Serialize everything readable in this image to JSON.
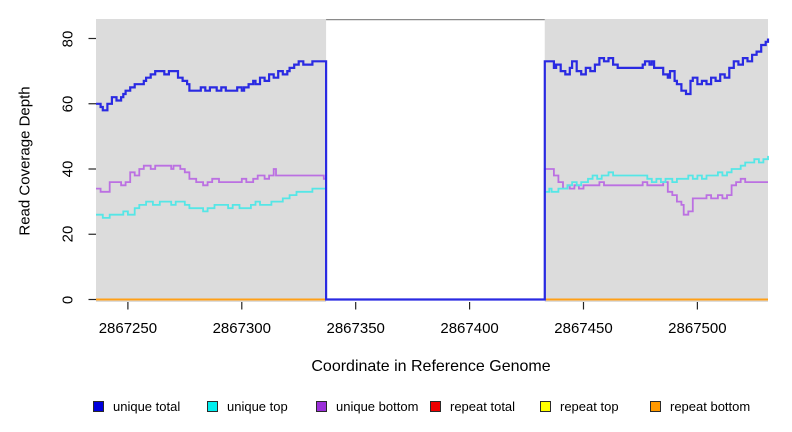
{
  "figure": {
    "page_bg_color": "#ffffff",
    "plot_bg_color": "#dcdcdc",
    "tick_color": "#262626"
  },
  "chart_data": {
    "type": "line",
    "step": true,
    "title": "",
    "xlabel": "Coordinate in Reference Genome",
    "ylabel": "Read Coverage Depth",
    "xlim": [
      2867236,
      2867531
    ],
    "ylim": [
      0,
      80
    ],
    "x_ticks": [
      2867250,
      2867300,
      2867350,
      2867400,
      2867450,
      2867500
    ],
    "y_ticks": [
      0,
      20,
      40,
      60,
      80
    ],
    "grid": false,
    "legend_position": "bottom",
    "masked_region": {
      "x_start": 2867337,
      "x_end": 2867433,
      "fill": "#ffffff",
      "border_color": "#8a8a8a"
    },
    "series": [
      {
        "name": "unique total",
        "line_color": "#2a2ae2",
        "legend_color": "#0000dd",
        "line_width": 2.2,
        "points": [
          [
            2867236,
            60
          ],
          [
            2867238,
            59
          ],
          [
            2867239,
            58
          ],
          [
            2867241,
            60
          ],
          [
            2867243,
            62
          ],
          [
            2867245,
            61
          ],
          [
            2867247,
            62
          ],
          [
            2867248,
            63
          ],
          [
            2867249,
            64
          ],
          [
            2867251,
            65
          ],
          [
            2867253,
            66
          ],
          [
            2867255,
            66
          ],
          [
            2867257,
            67
          ],
          [
            2867258,
            68
          ],
          [
            2867260,
            69
          ],
          [
            2867262,
            70
          ],
          [
            2867264,
            70
          ],
          [
            2867266,
            69
          ],
          [
            2867268,
            70
          ],
          [
            2867271,
            70
          ],
          [
            2867272,
            68
          ],
          [
            2867274,
            67
          ],
          [
            2867276,
            66
          ],
          [
            2867277,
            64
          ],
          [
            2867280,
            64
          ],
          [
            2867282,
            65
          ],
          [
            2867284,
            64
          ],
          [
            2867286,
            65
          ],
          [
            2867289,
            64
          ],
          [
            2867291,
            65
          ],
          [
            2867293,
            64
          ],
          [
            2867296,
            64
          ],
          [
            2867298,
            65
          ],
          [
            2867300,
            64
          ],
          [
            2867301,
            65
          ],
          [
            2867303,
            66
          ],
          [
            2867305,
            67
          ],
          [
            2867306,
            66
          ],
          [
            2867308,
            68
          ],
          [
            2867310,
            67
          ],
          [
            2867312,
            69
          ],
          [
            2867314,
            68
          ],
          [
            2867316,
            70
          ],
          [
            2867318,
            69
          ],
          [
            2867320,
            70
          ],
          [
            2867321,
            71
          ],
          [
            2867323,
            72
          ],
          [
            2867325,
            73
          ],
          [
            2867327,
            72
          ],
          [
            2867329,
            72
          ],
          [
            2867331,
            73
          ],
          [
            2867334,
            73
          ],
          [
            2867337,
            0
          ],
          [
            2867433,
            73
          ],
          [
            2867436,
            73
          ],
          [
            2867437,
            71
          ],
          [
            2867438,
            72
          ],
          [
            2867440,
            70
          ],
          [
            2867442,
            69
          ],
          [
            2867444,
            71
          ],
          [
            2867445,
            73
          ],
          [
            2867447,
            70
          ],
          [
            2867449,
            69
          ],
          [
            2867451,
            71
          ],
          [
            2867453,
            70
          ],
          [
            2867455,
            72
          ],
          [
            2867457,
            74
          ],
          [
            2867459,
            73
          ],
          [
            2867461,
            74
          ],
          [
            2867463,
            72
          ],
          [
            2867465,
            71
          ],
          [
            2867468,
            71
          ],
          [
            2867471,
            71
          ],
          [
            2867474,
            71
          ],
          [
            2867476,
            72
          ],
          [
            2867477,
            73
          ],
          [
            2867479,
            72
          ],
          [
            2867480,
            73
          ],
          [
            2867481,
            71
          ],
          [
            2867484,
            71
          ],
          [
            2867485,
            69
          ],
          [
            2867487,
            68
          ],
          [
            2867488,
            70
          ],
          [
            2867490,
            67
          ],
          [
            2867491,
            66
          ],
          [
            2867493,
            64
          ],
          [
            2867495,
            63
          ],
          [
            2867497,
            67
          ],
          [
            2867498,
            68
          ],
          [
            2867500,
            66
          ],
          [
            2867502,
            67
          ],
          [
            2867504,
            66
          ],
          [
            2867506,
            68
          ],
          [
            2867508,
            67
          ],
          [
            2867510,
            69
          ],
          [
            2867512,
            68
          ],
          [
            2867514,
            71
          ],
          [
            2867516,
            73
          ],
          [
            2867518,
            72
          ],
          [
            2867520,
            74
          ],
          [
            2867522,
            73
          ],
          [
            2867524,
            75
          ],
          [
            2867526,
            76
          ],
          [
            2867528,
            78
          ],
          [
            2867530,
            79
          ],
          [
            2867531,
            80
          ]
        ]
      },
      {
        "name": "unique top",
        "line_color": "#55e6e6",
        "legend_color": "#00eeee",
        "line_width": 1.8,
        "points": [
          [
            2867236,
            26
          ],
          [
            2867239,
            25
          ],
          [
            2867242,
            26
          ],
          [
            2867246,
            26
          ],
          [
            2867248,
            27
          ],
          [
            2867250,
            26
          ],
          [
            2867253,
            28
          ],
          [
            2867255,
            29
          ],
          [
            2867258,
            30
          ],
          [
            2867261,
            29
          ],
          [
            2867264,
            30
          ],
          [
            2867267,
            30
          ],
          [
            2867269,
            29
          ],
          [
            2867271,
            30
          ],
          [
            2867275,
            29
          ],
          [
            2867277,
            28
          ],
          [
            2867281,
            28
          ],
          [
            2867283,
            27
          ],
          [
            2867285,
            28
          ],
          [
            2867288,
            29
          ],
          [
            2867291,
            29
          ],
          [
            2867294,
            28
          ],
          [
            2867296,
            29
          ],
          [
            2867299,
            28
          ],
          [
            2867302,
            28
          ],
          [
            2867304,
            29
          ],
          [
            2867306,
            30
          ],
          [
            2867308,
            29
          ],
          [
            2867311,
            29
          ],
          [
            2867313,
            30
          ],
          [
            2867316,
            30
          ],
          [
            2867318,
            31
          ],
          [
            2867321,
            32
          ],
          [
            2867324,
            33
          ],
          [
            2867328,
            33
          ],
          [
            2867331,
            34
          ],
          [
            2867334,
            34
          ],
          [
            2867337,
            0
          ],
          [
            2867433,
            33
          ],
          [
            2867435,
            34
          ],
          [
            2867436,
            33
          ],
          [
            2867439,
            34
          ],
          [
            2867441,
            34
          ],
          [
            2867443,
            35
          ],
          [
            2867445,
            36
          ],
          [
            2867447,
            35
          ],
          [
            2867449,
            36
          ],
          [
            2867452,
            37
          ],
          [
            2867454,
            38
          ],
          [
            2867456,
            37
          ],
          [
            2867458,
            38
          ],
          [
            2867461,
            39
          ],
          [
            2867463,
            38
          ],
          [
            2867467,
            38
          ],
          [
            2867471,
            38
          ],
          [
            2867475,
            38
          ],
          [
            2867478,
            37
          ],
          [
            2867480,
            36
          ],
          [
            2867482,
            37
          ],
          [
            2867484,
            36
          ],
          [
            2867486,
            37
          ],
          [
            2867489,
            36
          ],
          [
            2867491,
            37
          ],
          [
            2867494,
            37
          ],
          [
            2867496,
            38
          ],
          [
            2867498,
            37
          ],
          [
            2867500,
            38
          ],
          [
            2867502,
            37
          ],
          [
            2867504,
            38
          ],
          [
            2867507,
            38
          ],
          [
            2867509,
            39
          ],
          [
            2867511,
            38
          ],
          [
            2867513,
            39
          ],
          [
            2867515,
            40
          ],
          [
            2867517,
            40
          ],
          [
            2867519,
            41
          ],
          [
            2867521,
            42
          ],
          [
            2867523,
            42
          ],
          [
            2867525,
            43
          ],
          [
            2867527,
            42
          ],
          [
            2867529,
            43
          ],
          [
            2867531,
            44
          ]
        ]
      },
      {
        "name": "unique bottom",
        "line_color": "#bb70e2",
        "legend_color": "#9b30d9",
        "line_width": 1.8,
        "points": [
          [
            2867236,
            34
          ],
          [
            2867238,
            33
          ],
          [
            2867241,
            33
          ],
          [
            2867242,
            36
          ],
          [
            2867245,
            36
          ],
          [
            2867247,
            35
          ],
          [
            2867249,
            36
          ],
          [
            2867251,
            39
          ],
          [
            2867253,
            38
          ],
          [
            2867255,
            40
          ],
          [
            2867257,
            41
          ],
          [
            2867260,
            40
          ],
          [
            2867262,
            41
          ],
          [
            2867266,
            41
          ],
          [
            2867269,
            40
          ],
          [
            2867270,
            41
          ],
          [
            2867273,
            40
          ],
          [
            2867275,
            39
          ],
          [
            2867277,
            37
          ],
          [
            2867280,
            36
          ],
          [
            2867283,
            35
          ],
          [
            2867285,
            36
          ],
          [
            2867287,
            37
          ],
          [
            2867290,
            36
          ],
          [
            2867294,
            36
          ],
          [
            2867297,
            36
          ],
          [
            2867300,
            37
          ],
          [
            2867302,
            36
          ],
          [
            2867305,
            37
          ],
          [
            2867307,
            38
          ],
          [
            2867310,
            37
          ],
          [
            2867312,
            38
          ],
          [
            2867314,
            40
          ],
          [
            2867315,
            38
          ],
          [
            2867318,
            38
          ],
          [
            2867322,
            38
          ],
          [
            2867326,
            38
          ],
          [
            2867330,
            38
          ],
          [
            2867333,
            38
          ],
          [
            2867336,
            37
          ],
          [
            2867337,
            0
          ],
          [
            2867433,
            40
          ],
          [
            2867436,
            40
          ],
          [
            2867437,
            38
          ],
          [
            2867439,
            36
          ],
          [
            2867441,
            34
          ],
          [
            2867443,
            35
          ],
          [
            2867444,
            34
          ],
          [
            2867446,
            35
          ],
          [
            2867448,
            34
          ],
          [
            2867450,
            35
          ],
          [
            2867453,
            35
          ],
          [
            2867457,
            36
          ],
          [
            2867459,
            35
          ],
          [
            2867463,
            35
          ],
          [
            2867467,
            35
          ],
          [
            2867471,
            35
          ],
          [
            2867474,
            35
          ],
          [
            2867476,
            36
          ],
          [
            2867478,
            35
          ],
          [
            2867482,
            35
          ],
          [
            2867485,
            36
          ],
          [
            2867487,
            33
          ],
          [
            2867489,
            32
          ],
          [
            2867491,
            30
          ],
          [
            2867493,
            29
          ],
          [
            2867494,
            26
          ],
          [
            2867496,
            27
          ],
          [
            2867498,
            31
          ],
          [
            2867501,
            31
          ],
          [
            2867504,
            32
          ],
          [
            2867506,
            31
          ],
          [
            2867509,
            32
          ],
          [
            2867511,
            31
          ],
          [
            2867513,
            32
          ],
          [
            2867515,
            35
          ],
          [
            2867517,
            36
          ],
          [
            2867519,
            37
          ],
          [
            2867521,
            36
          ],
          [
            2867525,
            36
          ],
          [
            2867528,
            36
          ],
          [
            2867531,
            36
          ]
        ]
      },
      {
        "name": "repeat total",
        "line_color": "#e60000",
        "legend_color": "#ee0000",
        "line_width": 2,
        "points": [
          [
            2867236,
            0
          ],
          [
            2867531,
            0
          ]
        ]
      },
      {
        "name": "repeat top",
        "line_color": "#ffff00",
        "legend_color": "#ffff00",
        "line_width": 2,
        "points": [
          [
            2867236,
            0
          ],
          [
            2867531,
            0
          ]
        ]
      },
      {
        "name": "repeat bottom",
        "line_color": "#ffa018",
        "legend_color": "#ff9900",
        "line_width": 2,
        "points": [
          [
            2867236,
            0
          ],
          [
            2867531,
            0
          ]
        ]
      }
    ]
  }
}
